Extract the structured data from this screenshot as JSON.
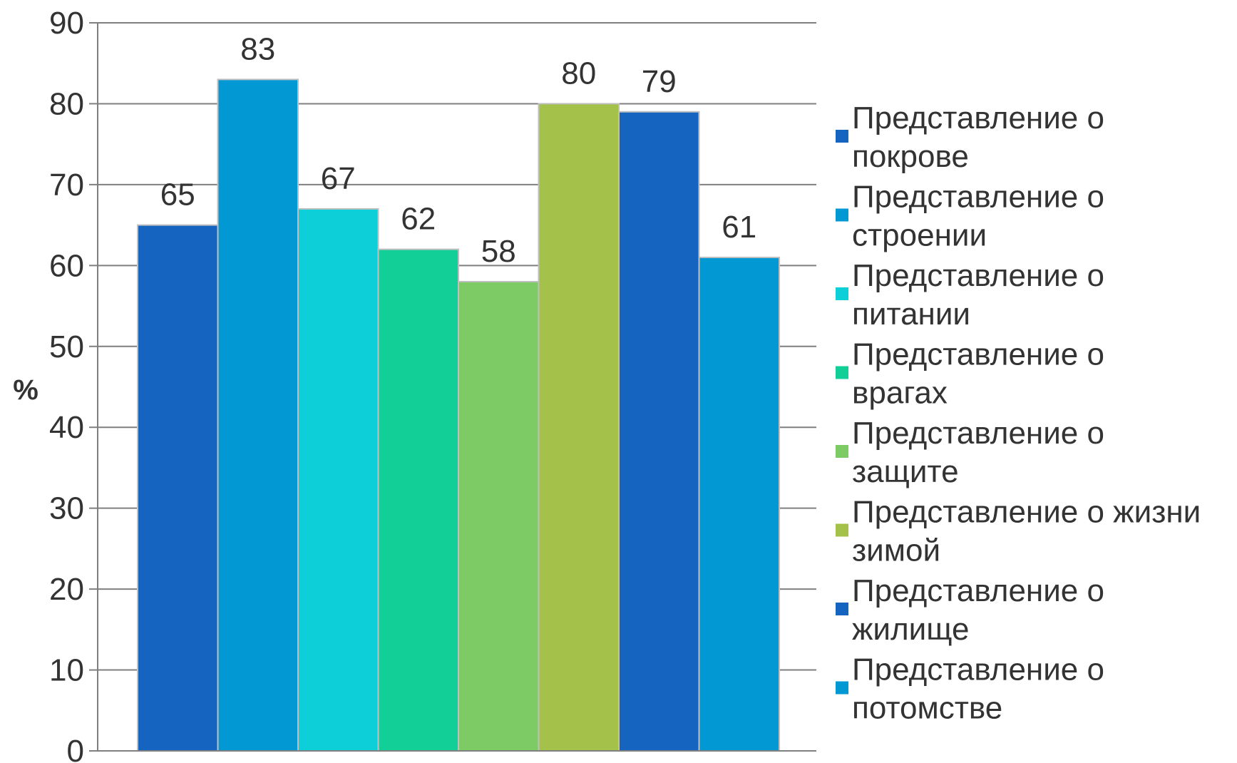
{
  "chart_data": {
    "type": "bar",
    "ylabel": "%",
    "ylim": [
      0,
      90
    ],
    "yticks": [
      0,
      10,
      20,
      30,
      40,
      50,
      60,
      70,
      80,
      90
    ],
    "grid": true,
    "legend_position": "right",
    "series": [
      {
        "name": [
          "Представление о",
          "покрове"
        ],
        "value": 65,
        "color": "#1565c0"
      },
      {
        "name": [
          "Представление о",
          "строении"
        ],
        "value": 83,
        "color": "#0298d4"
      },
      {
        "name": [
          "Представление о",
          "питании"
        ],
        "value": 67,
        "color": "#0ccfd8"
      },
      {
        "name": [
          "Представление о",
          "врагах"
        ],
        "value": 62,
        "color": "#12cf97"
      },
      {
        "name": [
          "Представление о",
          "защите"
        ],
        "value": 58,
        "color": "#7dcb64"
      },
      {
        "name": [
          "Представление о жизни",
          "зимой"
        ],
        "value": 80,
        "color": "#a4c14a"
      },
      {
        "name": [
          "Представление о",
          "жилище"
        ],
        "value": 79,
        "color": "#1565c0"
      },
      {
        "name": [
          "Представление о",
          "потомстве"
        ],
        "value": 61,
        "color": "#0298d4"
      }
    ]
  }
}
